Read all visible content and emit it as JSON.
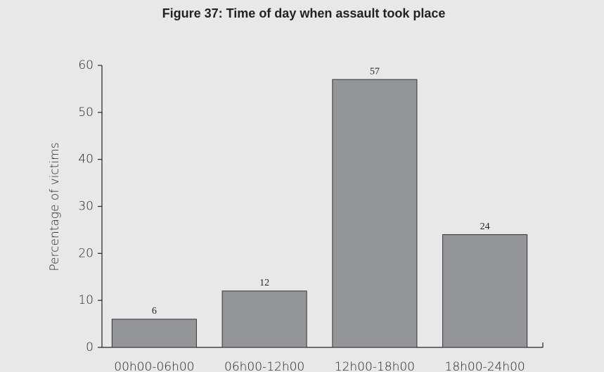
{
  "chart_data": {
    "type": "bar",
    "title": "Figure 37: Time of day when assault took place",
    "y_label": "Percentage of victims",
    "categories": [
      "00h00-06h00",
      "06h00-12h00",
      "12h00-18h00",
      "18h00-24h00"
    ],
    "values": [
      6,
      12,
      57,
      24
    ],
    "color": "#939598",
    "ylim": [
      0,
      60
    ],
    "yticks": [
      0,
      10,
      20,
      30,
      40,
      50,
      60
    ],
    "grid": false
  }
}
